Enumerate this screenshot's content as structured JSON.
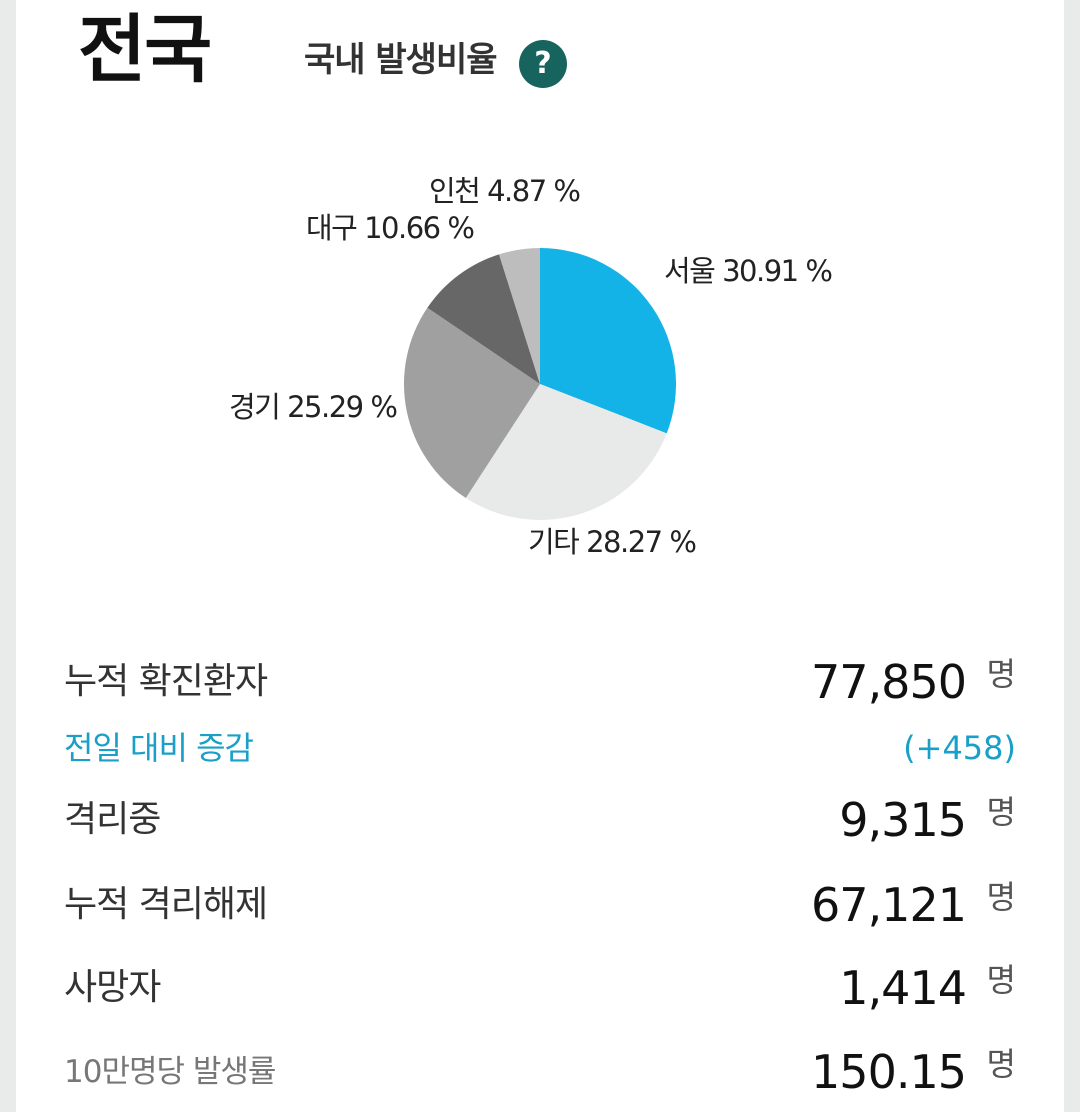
{
  "header": {
    "region": "전국",
    "subtitle": "국내 발생비율",
    "help_icon": "?"
  },
  "colors": {
    "seoul": "#13b3e8",
    "others": "#e8eaea",
    "gyeonggi": "#a0a0a0",
    "daegu": "#676767",
    "incheon": "#bdbdbd",
    "accent": "#1aa0c8",
    "help": "#17645e"
  },
  "chart_data": {
    "type": "pie",
    "categories": [
      "서울",
      "기타",
      "경기",
      "대구",
      "인천"
    ],
    "values": [
      30.91,
      28.27,
      25.29,
      10.66,
      4.87
    ],
    "labels": [
      "서울 30.91 %",
      "기타 28.27 %",
      "경기 25.29 %",
      "대구 10.66 %",
      "인천 4.87 %"
    ],
    "unit": "%"
  },
  "stats": {
    "confirmed": {
      "label": "누적 확진환자",
      "value": "77,850",
      "unit": "명"
    },
    "change": {
      "label": "전일 대비 증감",
      "value": "(+458)"
    },
    "isolated": {
      "label": "격리중",
      "value": "9,315",
      "unit": "명"
    },
    "released": {
      "label": "누적 격리해제",
      "value": "67,121",
      "unit": "명"
    },
    "deaths": {
      "label": "사망자",
      "value": "1,414",
      "unit": "명"
    },
    "rate": {
      "label": "10만명당 발생률",
      "value": "150.15",
      "unit": "명"
    }
  }
}
